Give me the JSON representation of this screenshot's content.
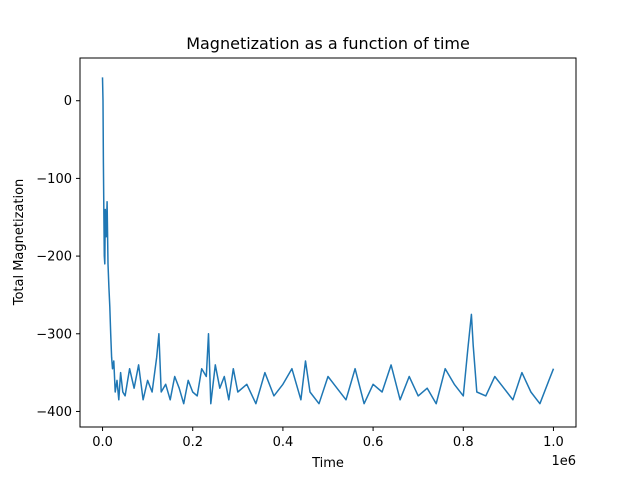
{
  "chart_data": {
    "type": "line",
    "title": "Magnetization as a function of time",
    "xlabel": "Time",
    "ylabel": "Total Magnetization",
    "x_offset_label": "1e6",
    "xlim": [
      -50000,
      1050000
    ],
    "ylim": [
      -420,
      55
    ],
    "xticks": [
      0,
      200000,
      400000,
      600000,
      800000,
      1000000
    ],
    "xtick_labels": [
      "0.0",
      "0.2",
      "0.4",
      "0.6",
      "0.8",
      "1.0"
    ],
    "yticks": [
      0,
      -100,
      -200,
      -300,
      -400
    ],
    "ytick_labels": [
      "0",
      "−100",
      "−200",
      "−300",
      "−400"
    ],
    "grid": false,
    "color": "#1f77b4",
    "series": [
      {
        "x": [
          0,
          1000,
          2000,
          3000,
          4000,
          5000,
          6000,
          8000,
          10000,
          12000,
          14000,
          16000,
          18000,
          20000,
          22000,
          25000,
          28000,
          32000,
          36000,
          40000,
          45000,
          50000,
          60000,
          70000,
          80000,
          90000,
          100000,
          110000,
          120000,
          125000,
          130000,
          140000,
          150000,
          160000,
          170000,
          180000,
          190000,
          200000,
          210000,
          220000,
          230000,
          235000,
          240000,
          250000,
          260000,
          270000,
          280000,
          290000,
          300000,
          320000,
          340000,
          360000,
          380000,
          400000,
          420000,
          440000,
          450000,
          460000,
          480000,
          500000,
          520000,
          540000,
          560000,
          580000,
          600000,
          620000,
          640000,
          660000,
          680000,
          700000,
          720000,
          740000,
          760000,
          780000,
          800000,
          810000,
          818000,
          822000,
          830000,
          850000,
          870000,
          890000,
          910000,
          930000,
          950000,
          970000,
          990000,
          1000000
        ],
        "y": [
          30,
          0,
          -80,
          -150,
          -200,
          -210,
          -140,
          -175,
          -130,
          -210,
          -240,
          -265,
          -300,
          -330,
          -345,
          -335,
          -375,
          -360,
          -385,
          -350,
          -375,
          -380,
          -345,
          -370,
          -340,
          -385,
          -360,
          -375,
          -330,
          -300,
          -375,
          -365,
          -385,
          -355,
          -370,
          -390,
          -360,
          -375,
          -380,
          -345,
          -355,
          -300,
          -390,
          -340,
          -370,
          -355,
          -385,
          -345,
          -375,
          -365,
          -390,
          -350,
          -380,
          -365,
          -345,
          -385,
          -335,
          -375,
          -390,
          -355,
          -370,
          -385,
          -345,
          -390,
          -365,
          -375,
          -340,
          -385,
          -355,
          -380,
          -370,
          -390,
          -345,
          -365,
          -380,
          -320,
          -275,
          -315,
          -375,
          -380,
          -355,
          -370,
          -385,
          -350,
          -375,
          -390,
          -360,
          -345
        ]
      }
    ]
  }
}
